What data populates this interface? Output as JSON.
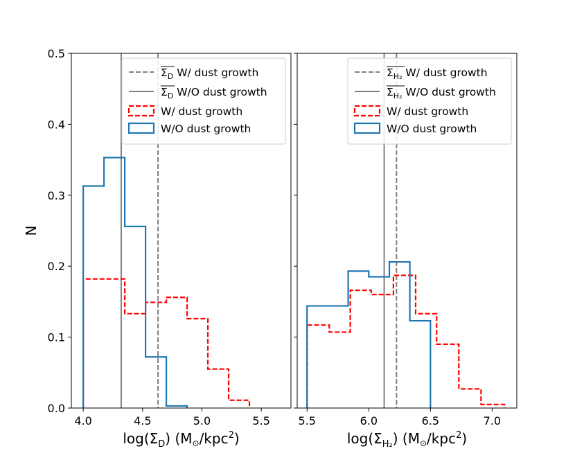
{
  "chart_data": [
    {
      "type": "histogram",
      "ylabel": "N",
      "xlabel": {
        "pre": "log(Σ",
        "sub": "D",
        "mid": ") (M",
        "sun": "⊙",
        "post": "/kpc",
        "sup": "2",
        "close": ")"
      },
      "xlim": [
        3.9,
        5.75
      ],
      "ylim": [
        0,
        0.5
      ],
      "xticks": [
        "4.0",
        "4.5",
        "5.0",
        "5.5"
      ],
      "yticks": [
        "0.0",
        "0.1",
        "0.2",
        "0.3",
        "0.4",
        "0.5"
      ],
      "mean_lines": [
        {
          "name": "mean W/ dust growth",
          "x": 4.63,
          "style": "dashed",
          "color": "#808080"
        },
        {
          "name": "mean W/O dust growth",
          "x": 4.32,
          "style": "solid",
          "color": "#808080"
        }
      ],
      "series": [
        {
          "name": "W/ dust growth",
          "color": "#ff0000",
          "style": "dashed",
          "bin_edges": [
            4.0,
            4.175,
            4.35,
            4.525,
            4.7,
            4.875,
            5.05,
            5.225,
            5.4
          ],
          "values": [
            0.182,
            0.182,
            0.133,
            0.149,
            0.156,
            0.126,
            0.055,
            0.011
          ]
        },
        {
          "name": "W/O dust growth",
          "color": "#1f77b4",
          "style": "solid",
          "bin_edges": [
            4.0,
            4.175,
            4.35,
            4.525,
            4.7,
            4.875
          ],
          "values": [
            0.313,
            0.353,
            0.256,
            0.072,
            0.003
          ]
        }
      ],
      "legend": {
        "position": "top-right",
        "entries": [
          {
            "kind": "dashed-line",
            "color": "#808080",
            "sym": "Σ",
            "sub": "D",
            "text": " W/ dust growth"
          },
          {
            "kind": "solid-line",
            "color": "#808080",
            "sym": "Σ",
            "sub": "D",
            "text": " W/O dust growth"
          },
          {
            "kind": "dashed-box",
            "color": "#ff0000",
            "text": "W/ dust growth"
          },
          {
            "kind": "solid-box",
            "color": "#1f77b4",
            "text": "W/O dust growth"
          }
        ]
      }
    },
    {
      "type": "histogram",
      "ylabel": "",
      "xlabel": {
        "pre": "log(Σ",
        "sub": "H₂",
        "mid": ") (M",
        "sun": "⊙",
        "post": "/kpc",
        "sup": "2",
        "close": ")"
      },
      "xlim": [
        5.42,
        7.2
      ],
      "ylim": [
        0,
        0.5
      ],
      "xticks": [
        "5.5",
        "6.0",
        "6.5",
        "7.0"
      ],
      "yticks": [],
      "mean_lines": [
        {
          "name": "mean W/ dust growth",
          "x": 6.225,
          "style": "dashed",
          "color": "#808080"
        },
        {
          "name": "mean W/O dust growth",
          "x": 6.125,
          "style": "solid",
          "color": "#808080"
        }
      ],
      "series": [
        {
          "name": "W/ dust growth",
          "color": "#ff0000",
          "style": "dashed",
          "bin_edges": [
            5.5,
            5.68,
            5.85,
            6.02,
            6.2,
            6.38,
            6.55,
            6.73,
            6.91,
            7.1
          ],
          "values": [
            0.117,
            0.107,
            0.166,
            0.16,
            0.187,
            0.133,
            0.09,
            0.027,
            0.005
          ]
        },
        {
          "name": "W/O dust growth",
          "color": "#1f77b4",
          "style": "solid",
          "bin_edges": [
            5.5,
            5.833,
            6.0,
            6.167,
            6.333,
            6.5
          ],
          "values": [
            0.144,
            0.193,
            0.185,
            0.206,
            0.123
          ]
        }
      ],
      "legend": {
        "position": "top-right",
        "entries": [
          {
            "kind": "dashed-line",
            "color": "#808080",
            "sym": "Σ",
            "sub": "H₂",
            "text": " W/ dust growth"
          },
          {
            "kind": "solid-line",
            "color": "#808080",
            "sym": "Σ",
            "sub": "H₂",
            "text": " W/O dust growth"
          },
          {
            "kind": "dashed-box",
            "color": "#ff0000",
            "text": "W/ dust growth"
          },
          {
            "kind": "solid-box",
            "color": "#1f77b4",
            "text": "W/O dust growth"
          }
        ]
      }
    }
  ]
}
